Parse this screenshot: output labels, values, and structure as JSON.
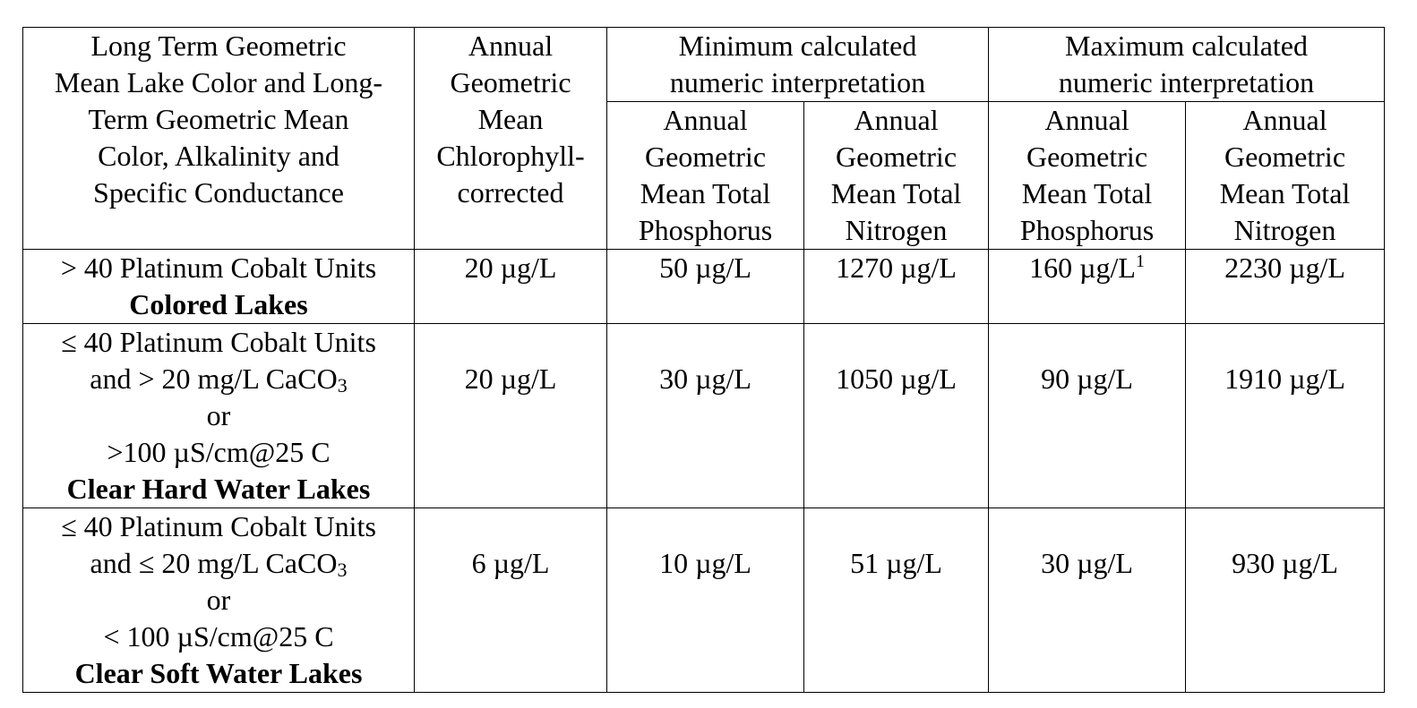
{
  "header": {
    "col1": [
      "Long Term Geometric",
      "Mean Lake Color and Long-",
      "Term Geometric Mean",
      "Color, Alkalinity and",
      "Specific Conductance"
    ],
    "col2": [
      "Annual",
      "Geometric",
      "Mean",
      "Chlorophyll-",
      "corrected"
    ],
    "min_group": [
      "Minimum calculated",
      "numeric interpretation"
    ],
    "max_group": [
      "Maximum calculated",
      "numeric interpretation"
    ],
    "tp": [
      "Annual",
      "Geometric",
      "Mean Total",
      "Phosphorus"
    ],
    "tn": [
      "Annual",
      "Geometric",
      "Mean Total",
      "Nitrogen"
    ]
  },
  "rows": [
    {
      "category_lines": [
        "> 40 Platinum Cobalt Units"
      ],
      "category_bold": "Colored Lakes",
      "chl": "20 µg/L",
      "min_tp": "50 µg/L",
      "min_tn": "1270 µg/L",
      "max_tp": "160 µg/L",
      "max_tp_note": "1",
      "max_tn": "2230 µg/L"
    },
    {
      "category_lines": [
        "≤ 40 Platinum Cobalt Units",
        "and > 20 mg/L CaCO",
        "3",
        "or",
        ">100 µS/cm@25 C"
      ],
      "category_bold": "Clear Hard Water Lakes",
      "chl": "20 µg/L",
      "min_tp": "30 µg/L",
      "min_tn": "1050 µg/L",
      "max_tp": "90 µg/L",
      "max_tn": "1910 µg/L"
    },
    {
      "category_lines": [
        "≤ 40 Platinum Cobalt Units",
        "and ≤ 20 mg/L CaCO",
        "3",
        "or",
        "< 100 µS/cm@25 C"
      ],
      "category_bold": "Clear Soft Water Lakes",
      "chl": "6 µg/L",
      "min_tp": "10 µg/L",
      "min_tn": "51 µg/L",
      "max_tp": "30 µg/L",
      "max_tn": "930 µg/L"
    }
  ]
}
